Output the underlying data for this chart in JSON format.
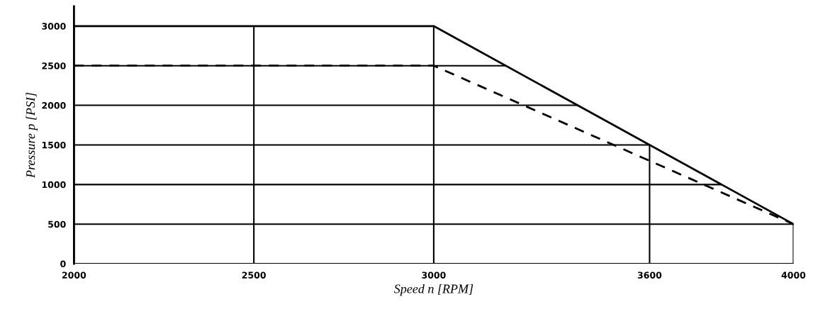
{
  "chart_data": {
    "type": "line",
    "xlabel": "Speed n [RPM]",
    "ylabel": "Pressure p [PSI]",
    "x": [
      2000,
      3000,
      4000
    ],
    "series": [
      {
        "color": "#000000",
        "values": [
          3000,
          3000,
          500
        ],
        "line_style": "solid"
      },
      {
        "color": "#000000",
        "values": [
          2500,
          2500,
          500
        ],
        "line_style": "dashed"
      }
    ],
    "xlim": [
      2000,
      4000
    ],
    "xticks": [
      2000,
      2500,
      3000,
      3600,
      4000
    ],
    "ylim": [
      0,
      3250
    ],
    "yticks": [
      0,
      500,
      1000,
      1500,
      2000,
      2500,
      3000
    ],
    "grid": true,
    "marker": "none"
  }
}
